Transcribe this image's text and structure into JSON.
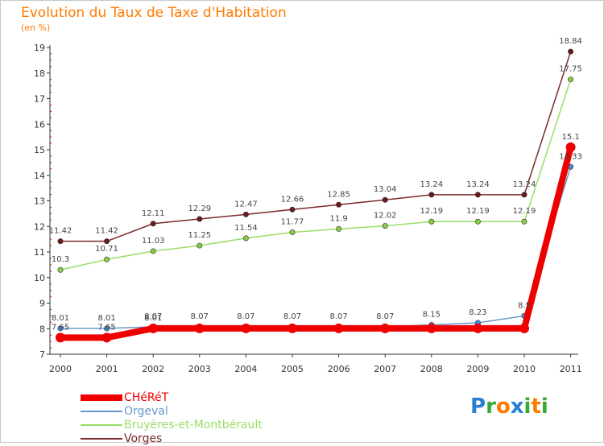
{
  "title": "Evolution du Taux de Taxe d'Habitation",
  "subtitle": "(en %)",
  "logo": {
    "text": "Proxiti",
    "letters": [
      {
        "char": "P",
        "color": "#2a7fd4"
      },
      {
        "char": "r",
        "color": "#33aa33"
      },
      {
        "char": "o",
        "color": "#ff7a00"
      },
      {
        "char": "x",
        "color": "#2a7fd4"
      },
      {
        "char": "i",
        "color": "#33aa33"
      },
      {
        "char": "t",
        "color": "#ff7a00"
      },
      {
        "char": "i",
        "color": "#33aa33"
      }
    ]
  },
  "chart_data": {
    "type": "line",
    "title": "Evolution du Taux de Taxe d'Habitation",
    "subtitle": "(en %)",
    "x": [
      "2000",
      "2001",
      "2002",
      "2003",
      "2004",
      "2005",
      "2006",
      "2007",
      "2008",
      "2009",
      "2010",
      "2011"
    ],
    "ylim": [
      7,
      19
    ],
    "yticks": [
      7,
      8,
      9,
      10,
      11,
      12,
      13,
      14,
      15,
      16,
      17,
      18,
      19
    ],
    "grid": false,
    "legend_position": "bottom-left",
    "series": [
      {
        "name": "CHéRéT",
        "color": "#ee0000",
        "line_width": 8,
        "marker_color": "#ee0000",
        "values": [
          7.65,
          7.65,
          8.01,
          8.01,
          8.01,
          8.01,
          8.01,
          8.01,
          8.01,
          8.01,
          8.01,
          15.1
        ],
        "labels": [
          "7.65",
          "7.65",
          "8.01",
          "",
          "",
          "",
          "",
          "",
          "",
          "",
          "",
          "15.1"
        ]
      },
      {
        "name": "Orgeval",
        "color": "#6699cc",
        "line_width": 1.5,
        "marker_color": "#3d8fd9",
        "values": [
          8.01,
          8.01,
          8.07,
          8.07,
          8.07,
          8.07,
          8.07,
          8.07,
          8.15,
          8.23,
          8.5,
          14.33
        ],
        "labels": [
          "8.01",
          "8.01",
          "8.07",
          "8.07",
          "8.07",
          "8.07",
          "8.07",
          "8.07",
          "8.15",
          "8.23",
          "8.5",
          "14.33"
        ]
      },
      {
        "name": "Bruyères-et-Montbérault",
        "color": "#99dd66",
        "line_width": 1.5,
        "marker_color": "#88cc44",
        "values": [
          10.3,
          10.71,
          11.03,
          11.25,
          11.54,
          11.77,
          11.9,
          12.02,
          12.19,
          12.19,
          12.19,
          17.75
        ],
        "labels": [
          "10.3",
          "10.71",
          "11.03",
          "11.25",
          "11.54",
          "11.77",
          "11.9",
          "12.02",
          "12.19",
          "12.19",
          "12.19",
          "17.75"
        ]
      },
      {
        "name": "Vorges",
        "color": "#7a2a2a",
        "line_width": 1.5,
        "marker_color": "#6a1a1a",
        "values": [
          11.42,
          11.42,
          12.11,
          12.29,
          12.47,
          12.66,
          12.85,
          13.04,
          13.24,
          13.24,
          13.24,
          18.84
        ],
        "labels": [
          "11.42",
          "11.42",
          "12.11",
          "12.29",
          "12.47",
          "12.66",
          "12.85",
          "13.04",
          "13.24",
          "13.24",
          "13.24",
          "18.84"
        ]
      }
    ]
  }
}
